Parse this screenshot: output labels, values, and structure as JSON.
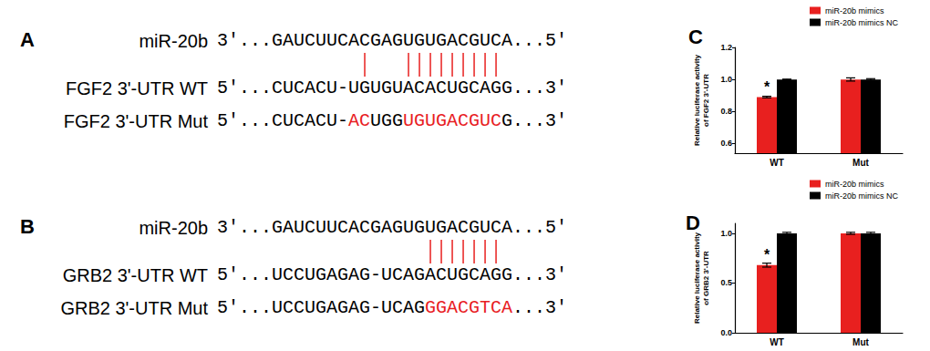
{
  "alignments": [
    {
      "panel_label": "A",
      "rows": [
        {
          "label": "miR-20b",
          "start": "3'...",
          "end": "...5'",
          "segments": [
            {
              "text": "GAUCUUCACGAGUGUGACGUCA",
              "mutated": false
            }
          ]
        },
        {
          "label": "FGF2 3'-UTR WT",
          "start": "5'...",
          "end": "...3'",
          "segments": [
            {
              "text": "CUCACU-UGUGUACACUGCAGG",
              "mutated": false
            }
          ]
        },
        {
          "label": "FGF2 3'-UTR Mut",
          "start": "5'...",
          "end": "...3'",
          "segments": [
            {
              "text": "CUCACU-",
              "mutated": false
            },
            {
              "text": "AC",
              "mutated": true
            },
            {
              "text": "UGG",
              "mutated": false
            },
            {
              "text": "UGUGACGUC",
              "mutated": true
            },
            {
              "text": "G",
              "mutated": false
            }
          ]
        }
      ],
      "base_pairs": [
        8,
        12,
        13,
        14,
        15,
        16,
        17,
        18,
        19,
        20
      ]
    },
    {
      "panel_label": "B",
      "rows": [
        {
          "label": "miR-20b",
          "start": "3'...",
          "end": "...5'",
          "segments": [
            {
              "text": "GAUCUUCACGAGUGUGACGUCA",
              "mutated": false
            }
          ]
        },
        {
          "label": "GRB2 3'-UTR WT",
          "start": "5'...",
          "end": "...3'",
          "segments": [
            {
              "text": "UCCUGAGAG-UCAGACUGCAGG",
              "mutated": false
            }
          ]
        },
        {
          "label": "GRB2 3'-UTR Mut",
          "start": "5'...",
          "end": "...3'",
          "segments": [
            {
              "text": "UCCUGAGAG-UCAG",
              "mutated": false
            },
            {
              "text": "GGACGTCA",
              "mutated": true
            }
          ]
        }
      ],
      "base_pairs": [
        14,
        15,
        16,
        17,
        18,
        19,
        20
      ]
    }
  ],
  "mutation_color": "#e8201f",
  "chart_data": [
    {
      "type": "bar",
      "panel_label": "C",
      "y_label": "Relative luciferase activity\nof FGF2 3'-UTR",
      "categories": [
        "WT",
        "Mut"
      ],
      "series": [
        {
          "name": "miR-20b mimics",
          "color": "#e8201f",
          "values": [
            0.89,
            1.0
          ],
          "errors": [
            0.005,
            0.01
          ]
        },
        {
          "name": "miR-20b mimics NC",
          "color": "#000000",
          "values": [
            1.0,
            1.0
          ],
          "errors": [
            0.002,
            0.005
          ]
        }
      ],
      "annotations": [
        {
          "text": "*",
          "series": "miR-20b mimics",
          "category": "WT"
        }
      ],
      "ylim": [
        0.54,
        1.2
      ],
      "yticks": [
        0.6,
        0.8,
        {
          "value": 1.0,
          "label": "1.0"
        },
        1.2
      ],
      "grid": false,
      "legend": "top right"
    },
    {
      "type": "bar",
      "panel_label": "D",
      "y_label": "Relative luciferase activity\nof GRB2 3'-UTR",
      "categories": [
        "WT",
        "Mut"
      ],
      "series": [
        {
          "name": "miR-20b mimics",
          "color": "#e8201f",
          "values": [
            0.68,
            1.0
          ],
          "errors": [
            0.02,
            0.01
          ]
        },
        {
          "name": "miR-20b mimics NC",
          "color": "#000000",
          "values": [
            1.0,
            1.0
          ],
          "errors": [
            0.01,
            0.01
          ]
        }
      ],
      "annotations": [
        {
          "text": "*",
          "series": "miR-20b mimics",
          "category": "WT"
        }
      ],
      "ylim": [
        0,
        1.1
      ],
      "yticks": [
        {
          "value": 0,
          "label": "0.0"
        },
        0.5,
        {
          "value": 1.0,
          "label": "1.0"
        }
      ],
      "grid": false,
      "legend": "top right"
    }
  ]
}
